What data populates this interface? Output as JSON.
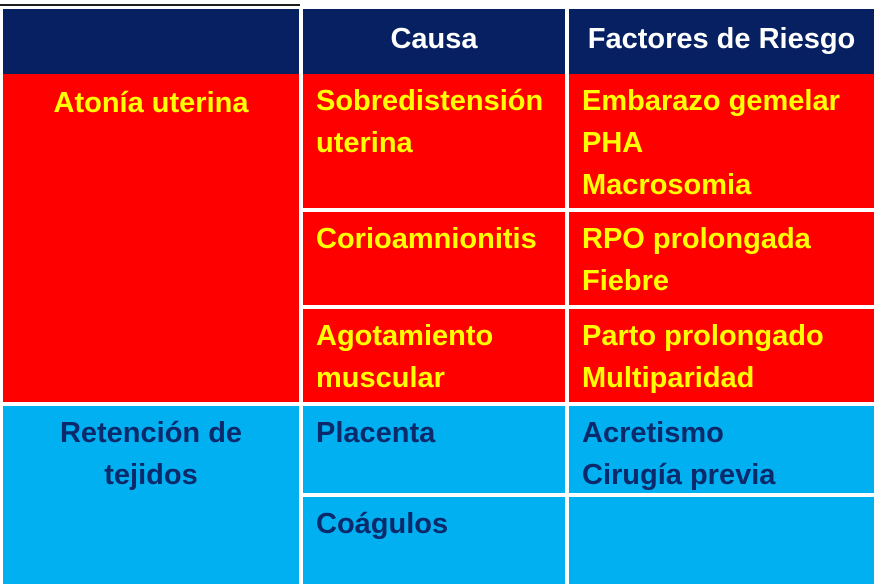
{
  "table": {
    "header": {
      "cause": "Causa",
      "risk_factors": "Factores de Riesgo"
    },
    "groups": [
      {
        "category_lines": [
          "Atonía uterina"
        ],
        "rows": [
          {
            "cause_lines": [
              "Sobredistensión",
              "uterina"
            ],
            "risk_lines": [
              "Embarazo gemelar",
              "PHA",
              "Macrosomia"
            ]
          },
          {
            "cause_lines": [
              "Corioamnionitis"
            ],
            "risk_lines": [
              "RPO prolongada",
              "Fiebre"
            ]
          },
          {
            "cause_lines": [
              "Agotamiento",
              "muscular"
            ],
            "risk_lines": [
              "Parto prolongado",
              "Multiparidad"
            ]
          }
        ]
      },
      {
        "category_lines": [
          "Retención de",
          "tejidos"
        ],
        "rows": [
          {
            "cause_lines": [
              "Placenta"
            ],
            "risk_lines": [
              "Acretismo",
              "Cirugía previa"
            ]
          },
          {
            "cause_lines": [
              "Coágulos"
            ],
            "risk_lines": []
          }
        ]
      }
    ]
  },
  "colors": {
    "header_bg": "#062062",
    "header_text": "#ffffff",
    "group1_bg": "#ff0000",
    "group1_text": "#ffff00",
    "group2_bg": "#00b0f0",
    "group2_text": "#0a2a6b"
  }
}
